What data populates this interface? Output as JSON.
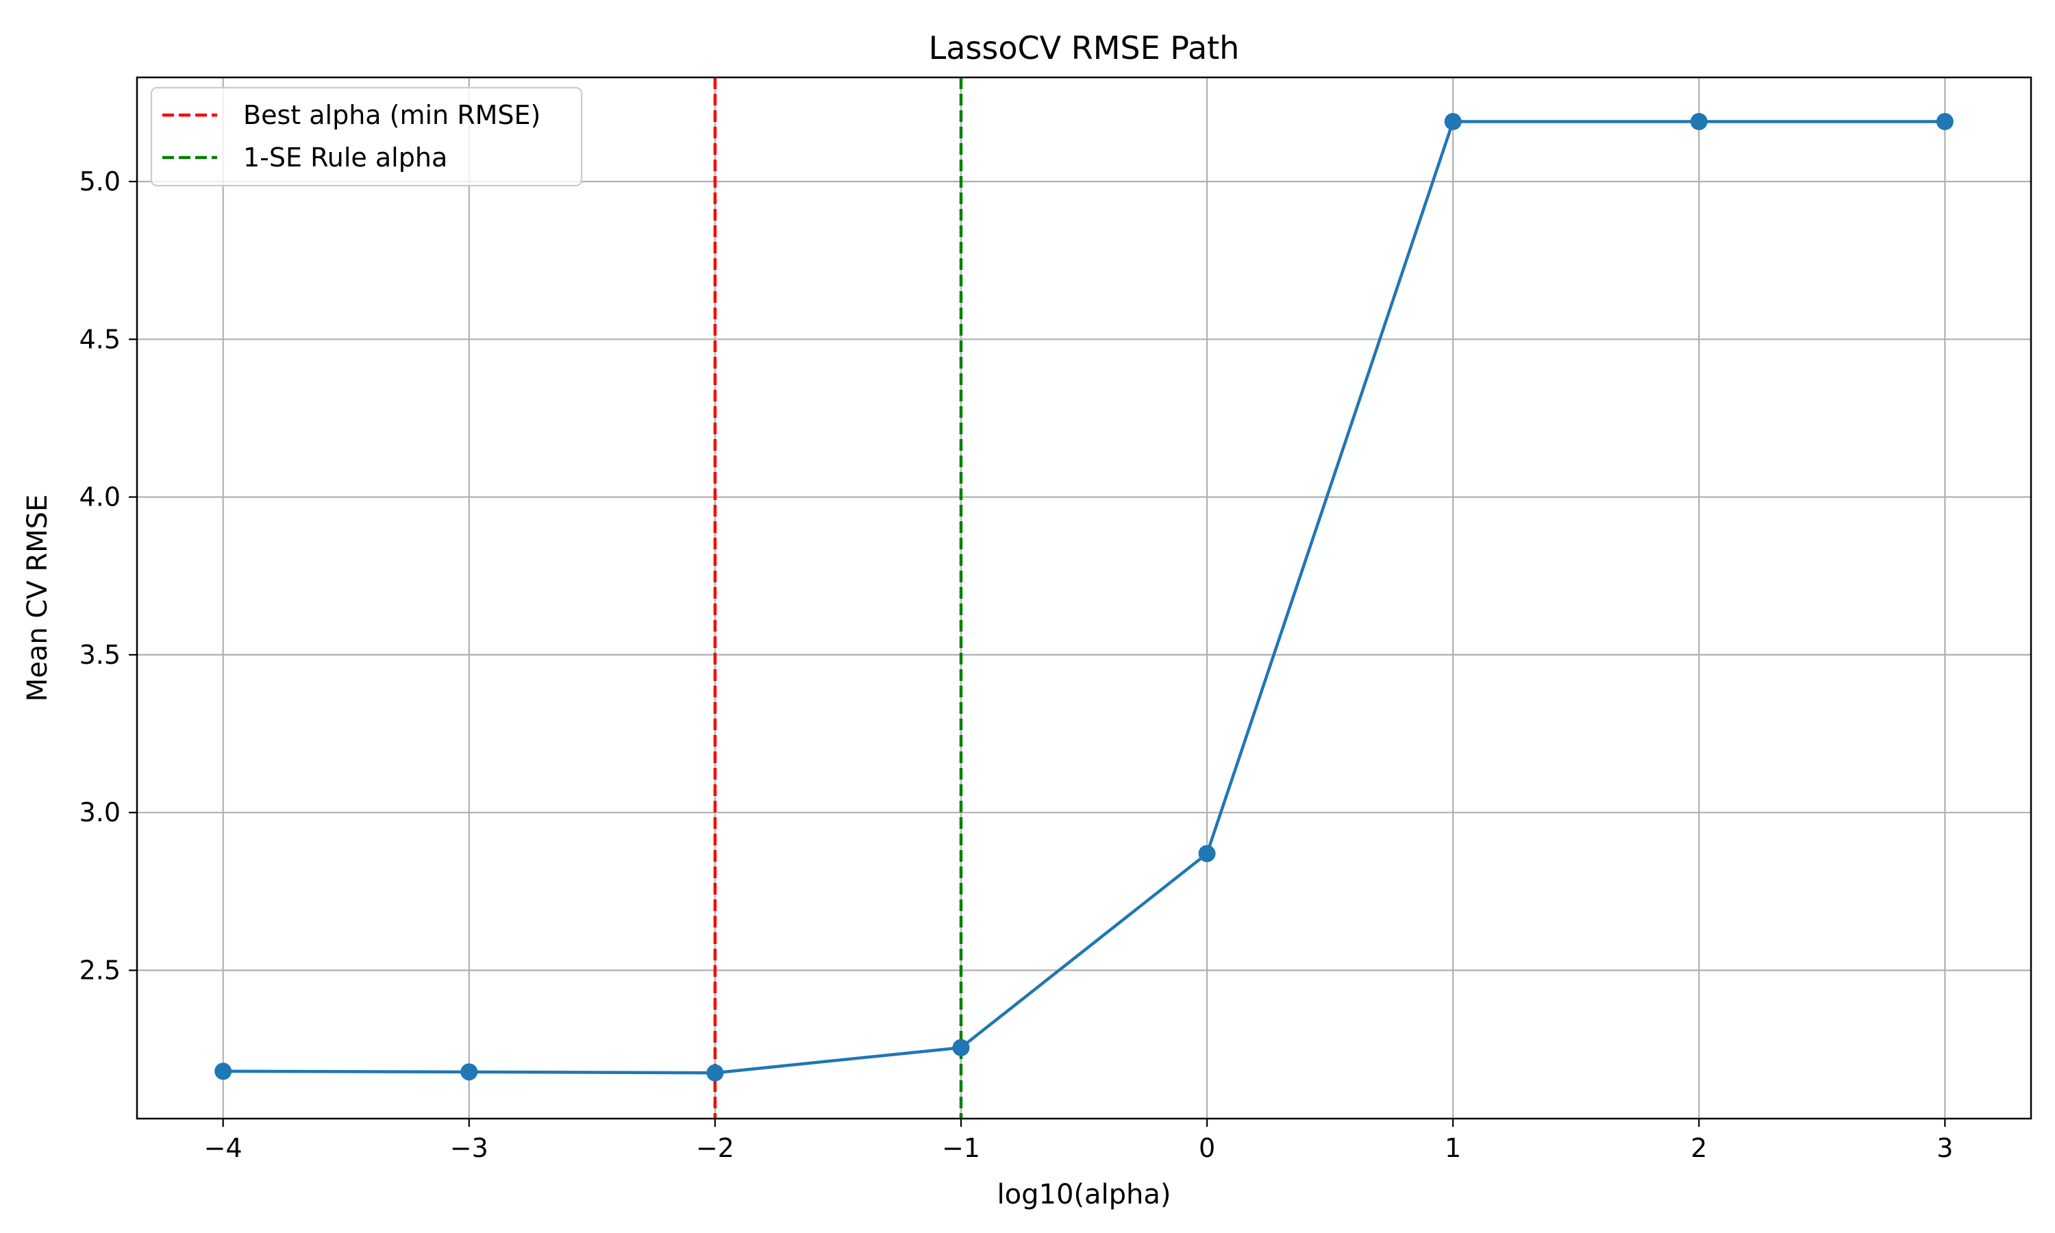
{
  "chart_data": {
    "type": "line",
    "title": "LassoCV RMSE Path",
    "xlabel": "log10(alpha)",
    "ylabel": "Mean CV RMSE",
    "xlim": [
      -4.35,
      3.35
    ],
    "ylim": [
      2.03,
      5.33
    ],
    "x_ticks": [
      -4,
      -3,
      -2,
      -1,
      0,
      1,
      2,
      3
    ],
    "x_tick_labels": [
      "−4",
      "−3",
      "−2",
      "−1",
      "0",
      "1",
      "2",
      "3"
    ],
    "y_ticks": [
      2.5,
      3.0,
      3.5,
      4.0,
      4.5,
      5.0
    ],
    "y_tick_labels": [
      "2.5",
      "3.0",
      "3.5",
      "4.0",
      "4.5",
      "5.0"
    ],
    "grid": true,
    "legend_position": "top-left",
    "series": [
      {
        "color": "#1f77b4",
        "marker": "circle",
        "x": [
          -4,
          -3,
          -2,
          -1,
          0,
          1,
          2,
          3
        ],
        "y": [
          2.18,
          2.178,
          2.175,
          2.255,
          2.87,
          5.19,
          5.19,
          5.19
        ]
      }
    ],
    "reference_lines": [
      {
        "name": "Best alpha (min RMSE)",
        "x": -2,
        "color": "#ff0000",
        "style": "dashed"
      },
      {
        "name": "1-SE Rule alpha",
        "x": -1,
        "color": "#008000",
        "style": "dashed"
      }
    ]
  }
}
